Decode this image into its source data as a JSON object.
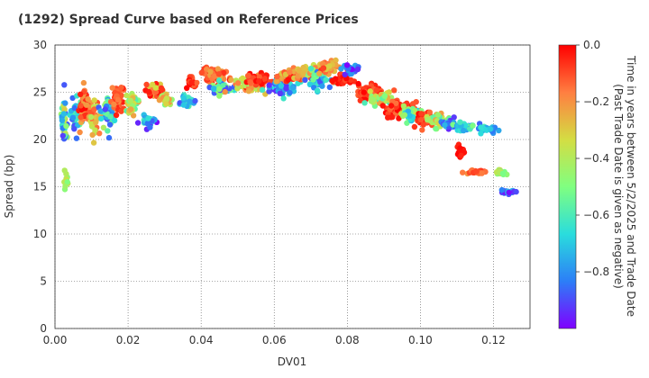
{
  "title": "(1292)   Spread Curve based on Reference Prices",
  "chart_data": {
    "type": "scatter",
    "title": "(1292)   Spread Curve based on Reference Prices",
    "xlabel": "DV01",
    "ylabel": "Spread (bp)",
    "xlim": [
      0,
      0.13
    ],
    "ylim": [
      0,
      30
    ],
    "xticks": [
      "0.00",
      "0.02",
      "0.04",
      "0.06",
      "0.08",
      "0.10",
      "0.12"
    ],
    "yticks": [
      "0",
      "5",
      "10",
      "15",
      "20",
      "25",
      "30"
    ],
    "grid": true,
    "colorbar": {
      "label_line1": "Time in years between 5/2/2025 and Trade Date",
      "label_line2": "(Past Trade Date is given as negative)",
      "range": [
        -1.0,
        0.0
      ],
      "ticks": [
        "0.0",
        "−0.2",
        "−0.4",
        "−0.6",
        "−0.8"
      ],
      "colormap": "rainbow",
      "colors": [
        "#7f00ff",
        "#2c7ef7",
        "#2adddd",
        "#80ff80",
        "#d4dd43",
        "#ff7e41",
        "#ff0000"
      ]
    },
    "clusters": [
      {
        "x": 0.0025,
        "y": 22.0,
        "sx": 0.0005,
        "sy": 2.3,
        "n": 45,
        "t": [
          -0.95,
          -0.3
        ]
      },
      {
        "x": 0.003,
        "y": 16.0,
        "sx": 0.0004,
        "sy": 1.0,
        "n": 10,
        "t": [
          -0.5,
          -0.35
        ]
      },
      {
        "x": 0.0055,
        "y": 22.5,
        "sx": 0.001,
        "sy": 1.7,
        "n": 40,
        "t": [
          -0.9,
          -0.5
        ]
      },
      {
        "x": 0.0085,
        "y": 23.3,
        "sx": 0.0012,
        "sy": 1.6,
        "n": 70,
        "t": [
          -0.25,
          0.0
        ]
      },
      {
        "x": 0.011,
        "y": 22.0,
        "sx": 0.001,
        "sy": 1.6,
        "n": 30,
        "t": [
          -0.4,
          -0.1
        ]
      },
      {
        "x": 0.0145,
        "y": 22.8,
        "sx": 0.0012,
        "sy": 1.3,
        "n": 45,
        "t": [
          -0.95,
          -0.4
        ]
      },
      {
        "x": 0.017,
        "y": 24.2,
        "sx": 0.001,
        "sy": 1.0,
        "n": 45,
        "t": [
          -0.2,
          0.0
        ]
      },
      {
        "x": 0.021,
        "y": 23.8,
        "sx": 0.0012,
        "sy": 0.9,
        "n": 40,
        "t": [
          -0.6,
          -0.2
        ]
      },
      {
        "x": 0.0255,
        "y": 22.0,
        "sx": 0.0012,
        "sy": 0.7,
        "n": 25,
        "t": [
          -1.0,
          -0.6
        ]
      },
      {
        "x": 0.0275,
        "y": 25.2,
        "sx": 0.0015,
        "sy": 0.6,
        "n": 55,
        "t": [
          -0.35,
          0.0
        ]
      },
      {
        "x": 0.0305,
        "y": 24.2,
        "sx": 0.0012,
        "sy": 0.6,
        "n": 30,
        "t": [
          -0.55,
          -0.2
        ]
      },
      {
        "x": 0.036,
        "y": 24.0,
        "sx": 0.0015,
        "sy": 0.5,
        "n": 25,
        "t": [
          -0.9,
          -0.55
        ]
      },
      {
        "x": 0.037,
        "y": 26.0,
        "sx": 0.0008,
        "sy": 0.5,
        "n": 25,
        "t": [
          -0.15,
          0.0
        ]
      },
      {
        "x": 0.044,
        "y": 26.8,
        "sx": 0.0025,
        "sy": 0.6,
        "n": 70,
        "t": [
          -0.25,
          0.0
        ]
      },
      {
        "x": 0.046,
        "y": 25.4,
        "sx": 0.002,
        "sy": 0.5,
        "n": 50,
        "t": [
          -0.95,
          -0.4
        ]
      },
      {
        "x": 0.053,
        "y": 25.8,
        "sx": 0.0025,
        "sy": 0.7,
        "n": 60,
        "t": [
          -0.45,
          -0.05
        ]
      },
      {
        "x": 0.056,
        "y": 26.4,
        "sx": 0.002,
        "sy": 0.5,
        "n": 50,
        "t": [
          -0.15,
          0.0
        ]
      },
      {
        "x": 0.062,
        "y": 25.6,
        "sx": 0.0025,
        "sy": 0.7,
        "n": 60,
        "t": [
          -0.95,
          -0.6
        ]
      },
      {
        "x": 0.065,
        "y": 26.8,
        "sx": 0.0025,
        "sy": 0.5,
        "n": 50,
        "t": [
          -0.3,
          0.0
        ]
      },
      {
        "x": 0.069,
        "y": 27.2,
        "sx": 0.0025,
        "sy": 0.5,
        "n": 45,
        "t": [
          -0.55,
          -0.15
        ]
      },
      {
        "x": 0.072,
        "y": 26.2,
        "sx": 0.002,
        "sy": 0.8,
        "n": 40,
        "t": [
          -0.9,
          -0.5
        ]
      },
      {
        "x": 0.075,
        "y": 27.6,
        "sx": 0.002,
        "sy": 0.5,
        "n": 40,
        "t": [
          -0.35,
          -0.05
        ]
      },
      {
        "x": 0.079,
        "y": 26.2,
        "sx": 0.0015,
        "sy": 0.7,
        "n": 30,
        "t": [
          -0.1,
          0.0
        ]
      },
      {
        "x": 0.081,
        "y": 27.4,
        "sx": 0.0015,
        "sy": 0.5,
        "n": 20,
        "t": [
          -1.0,
          -0.75
        ]
      },
      {
        "x": 0.086,
        "y": 25.0,
        "sx": 0.0025,
        "sy": 0.6,
        "n": 50,
        "t": [
          -0.15,
          0.0
        ]
      },
      {
        "x": 0.089,
        "y": 24.3,
        "sx": 0.002,
        "sy": 0.6,
        "n": 45,
        "t": [
          -0.6,
          -0.2
        ]
      },
      {
        "x": 0.094,
        "y": 23.2,
        "sx": 0.0025,
        "sy": 0.8,
        "n": 70,
        "t": [
          -0.15,
          0.0
        ]
      },
      {
        "x": 0.097,
        "y": 22.6,
        "sx": 0.002,
        "sy": 0.6,
        "n": 40,
        "t": [
          -0.75,
          -0.35
        ]
      },
      {
        "x": 0.101,
        "y": 22.2,
        "sx": 0.002,
        "sy": 0.6,
        "n": 50,
        "t": [
          -0.15,
          0.0
        ]
      },
      {
        "x": 0.105,
        "y": 22.0,
        "sx": 0.002,
        "sy": 0.6,
        "n": 40,
        "t": [
          -0.6,
          -0.2
        ]
      },
      {
        "x": 0.108,
        "y": 21.6,
        "sx": 0.0015,
        "sy": 0.5,
        "n": 30,
        "t": [
          -0.95,
          -0.65
        ]
      },
      {
        "x": 0.112,
        "y": 21.4,
        "sx": 0.002,
        "sy": 0.4,
        "n": 30,
        "t": [
          -0.8,
          -0.5
        ]
      },
      {
        "x": 0.118,
        "y": 21.0,
        "sx": 0.002,
        "sy": 0.4,
        "n": 25,
        "t": [
          -0.9,
          -0.6
        ]
      },
      {
        "x": 0.111,
        "y": 18.8,
        "sx": 0.0008,
        "sy": 0.7,
        "n": 15,
        "t": [
          -0.05,
          0.0
        ]
      },
      {
        "x": 0.115,
        "y": 16.6,
        "sx": 0.002,
        "sy": 0.2,
        "n": 30,
        "t": [
          -0.25,
          -0.05
        ]
      },
      {
        "x": 0.122,
        "y": 16.5,
        "sx": 0.0012,
        "sy": 0.2,
        "n": 20,
        "t": [
          -0.6,
          -0.3
        ]
      },
      {
        "x": 0.124,
        "y": 14.4,
        "sx": 0.0015,
        "sy": 0.2,
        "n": 25,
        "t": [
          -1.0,
          -0.7
        ]
      }
    ]
  }
}
